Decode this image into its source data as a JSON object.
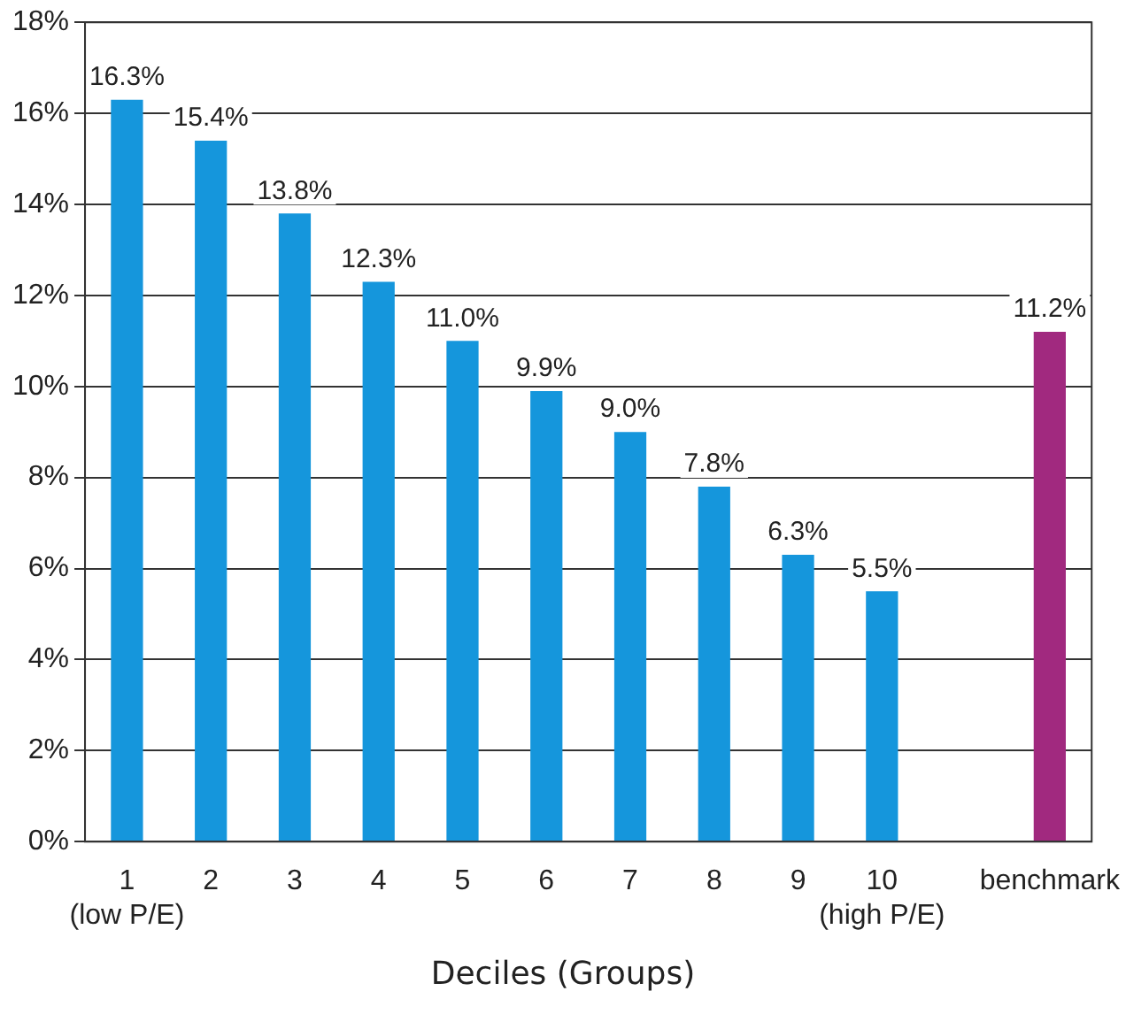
{
  "chart_data": {
    "type": "bar",
    "xlabel": "Deciles (Groups)",
    "categories": [
      "1\n(low P/E)",
      "2",
      "3",
      "4",
      "5",
      "6",
      "7",
      "8",
      "9",
      "10\n(high P/E)",
      null,
      "benchmark"
    ],
    "values": [
      16.3,
      15.4,
      13.8,
      12.3,
      11.0,
      9.9,
      9.0,
      7.8,
      6.3,
      5.5,
      null,
      11.2
    ],
    "colors": [
      "#1596dc",
      "#1596dc",
      "#1596dc",
      "#1596dc",
      "#1596dc",
      "#1596dc",
      "#1596dc",
      "#1596dc",
      "#1596dc",
      "#1596dc",
      "#1596dc",
      "#a1297f"
    ],
    "value_labels": [
      "16.3%",
      "15.4%",
      "13.8%",
      "12.3%",
      "11.0%",
      "9.9%",
      "9.0%",
      "7.8%",
      "6.3%",
      "5.5%",
      null,
      "11.2%"
    ],
    "ylim": [
      0,
      18
    ],
    "yticks": [
      {
        "value": 0,
        "label": "0%"
      },
      {
        "value": 2,
        "label": "2%"
      },
      {
        "value": 4,
        "label": "4%"
      },
      {
        "value": 6,
        "label": "6%"
      },
      {
        "value": 8,
        "label": "8%"
      },
      {
        "value": 10,
        "label": "10%"
      },
      {
        "value": 12,
        "label": "12%"
      },
      {
        "value": 14,
        "label": "14%"
      },
      {
        "value": 16,
        "label": "16%"
      },
      {
        "value": 18,
        "label": "18%"
      }
    ],
    "grid": "y",
    "legend": false
  }
}
